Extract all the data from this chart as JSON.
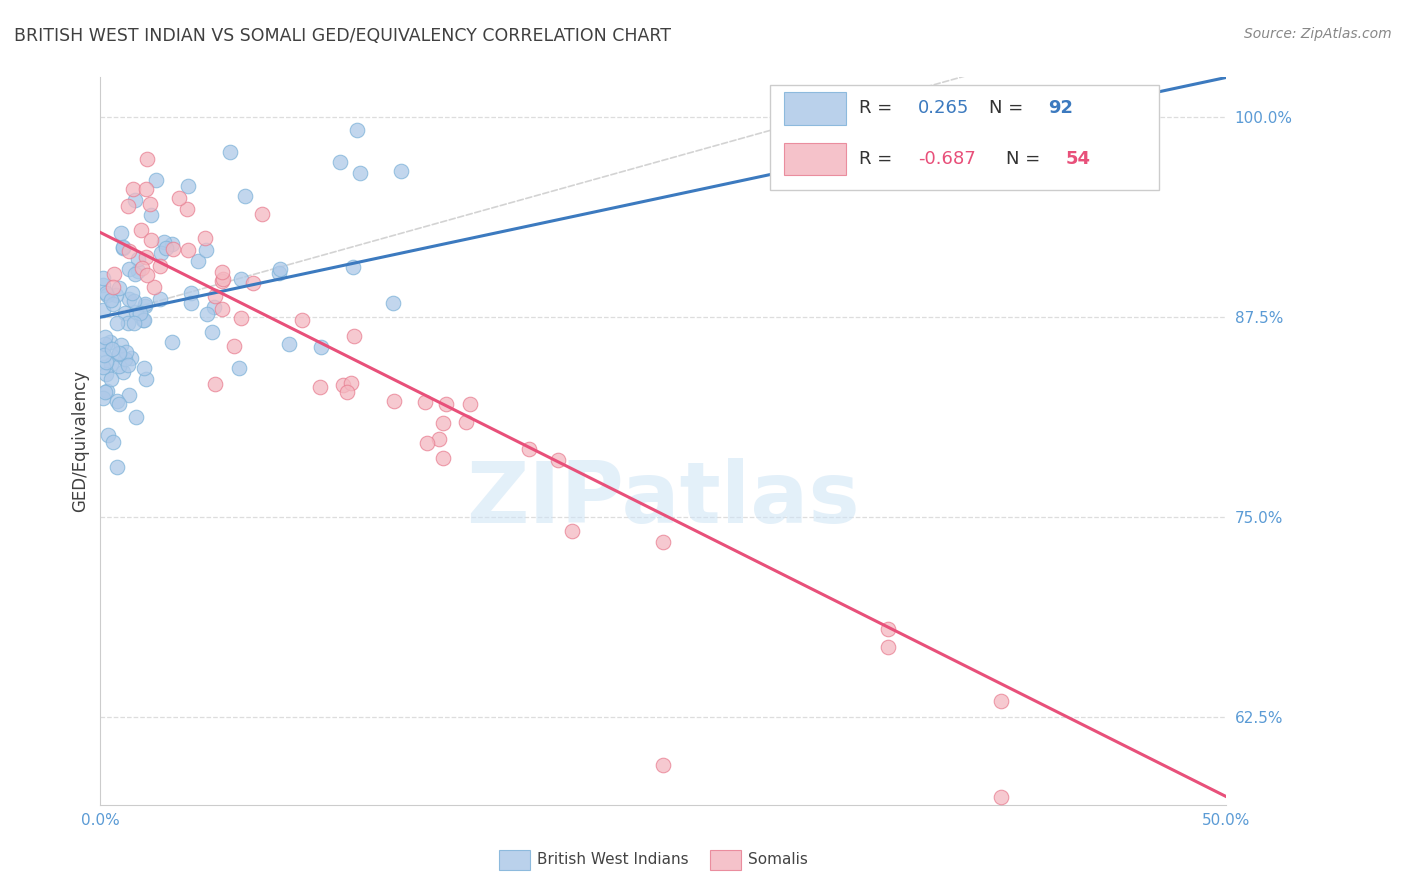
{
  "title": "BRITISH WEST INDIAN VS SOMALI GED/EQUIVALENCY CORRELATION CHART",
  "source": "Source: ZipAtlas.com",
  "ylabel": "GED/Equivalency",
  "watermark": "ZIPatlas",
  "xlim": [
    0.0,
    0.5
  ],
  "ylim": [
    0.57,
    1.025
  ],
  "xtick_positions": [
    0.0,
    0.1,
    0.2,
    0.3,
    0.4,
    0.5
  ],
  "xticklabels": [
    "0.0%",
    "",
    "",
    "",
    "",
    "50.0%"
  ],
  "yticks_right": [
    0.625,
    0.75,
    0.875,
    1.0
  ],
  "yticklabels_right": [
    "62.5%",
    "75.0%",
    "87.5%",
    "100.0%"
  ],
  "grid_color": "#dddddd",
  "background_color": "#ffffff",
  "blue_color": "#aec9e8",
  "blue_edge_color": "#7fb3d9",
  "pink_color": "#f4b8c1",
  "pink_edge_color": "#e87f92",
  "blue_line_color": "#3c7abf",
  "pink_line_color": "#e8507a",
  "diagonal_color": "#cccccc",
  "R_blue": 0.265,
  "N_blue": 92,
  "R_pink": -0.687,
  "N_pink": 54,
  "legend_label_blue": "British West Indians",
  "legend_label_pink": "Somalis",
  "blue_r_color": "#3c7abf",
  "pink_r_color": "#e8507a",
  "tick_color": "#5b9bd5",
  "title_color": "#404040",
  "ylabel_color": "#404040",
  "source_color": "#888888"
}
